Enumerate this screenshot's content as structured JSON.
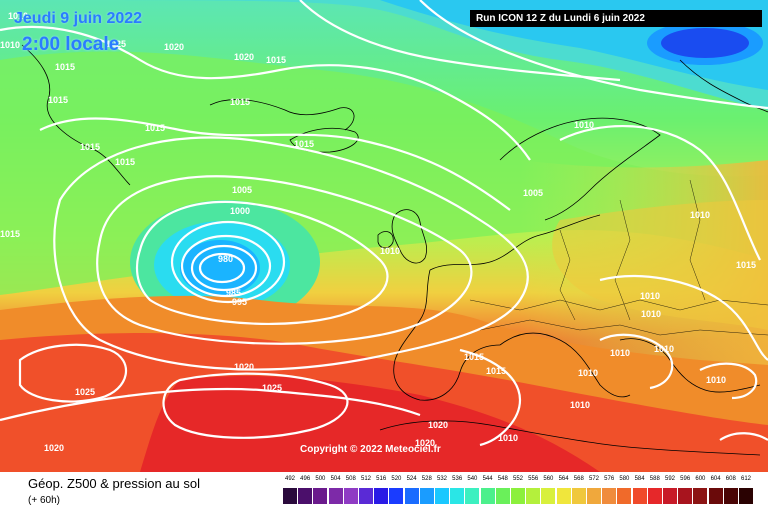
{
  "header": {
    "date": "Jeudi 9 juin 2022",
    "time": "2:00 locale",
    "run": "Run ICON 12 Z du Lundi 6 juin 2022"
  },
  "copyright": "Copyright © 2022 Meteociel.fr",
  "footer": {
    "product": "Géop. Z500 & pression au sol",
    "range": "(+ 60h)"
  },
  "scale": {
    "ticks": [
      "492",
      "496",
      "500",
      "504",
      "508",
      "512",
      "516",
      "520",
      "524",
      "528",
      "532",
      "536",
      "540",
      "544",
      "548",
      "552",
      "556",
      "560",
      "564",
      "568",
      "572",
      "576",
      "580",
      "584",
      "588",
      "592",
      "596",
      "600",
      "604",
      "608",
      "612"
    ],
    "colors": [
      "#2a0a3c",
      "#4b0f6b",
      "#6a1a8c",
      "#7d2aa8",
      "#8f3bc4",
      "#5a2ad6",
      "#2a1ae6",
      "#1a3cff",
      "#1a6cff",
      "#1a9cff",
      "#1ac8ff",
      "#2ae6e6",
      "#3cf0c0",
      "#4cf08c",
      "#6af05a",
      "#8cf03c",
      "#b4f03c",
      "#d8f03c",
      "#f0e63c",
      "#f0c83c",
      "#f0a83c",
      "#f08c3c",
      "#f06a2a",
      "#f04a2a",
      "#e6282a",
      "#c81a28",
      "#a8141e",
      "#8c1414",
      "#6a0a0a",
      "#4a0505",
      "#2a0202"
    ]
  },
  "colors": {
    "z500_512": "#1a4cf0",
    "z500_528": "#1ab4ff",
    "z500_544": "#2adcf0",
    "z500_552": "#5cf0a0",
    "z500_560": "#8cf05a",
    "z500_568": "#d8f050",
    "z500_576": "#f0c83c",
    "z500_584": "#f08c2a",
    "z500_592": "#f0502a",
    "z500_596": "#e62828",
    "isobar": "#ffffff",
    "coastline": "#000000",
    "title_blue": "#2a7cff"
  },
  "isobar_labels": [
    "1010",
    "1015",
    "1020",
    "1025",
    "1005",
    "1000",
    "995",
    "985",
    "980",
    "1015",
    "1020",
    "1015",
    "1010",
    "1005",
    "1010",
    "1025",
    "1020",
    "1020",
    "1015",
    "1010",
    "1015",
    "1020",
    "1015",
    "1010",
    "1015",
    "1010",
    "1010",
    "1010",
    "1015",
    "1010",
    "1015",
    "1010",
    "1010",
    "1020",
    "1025",
    "1015",
    "1010",
    "1015",
    "1015",
    "1010"
  ]
}
